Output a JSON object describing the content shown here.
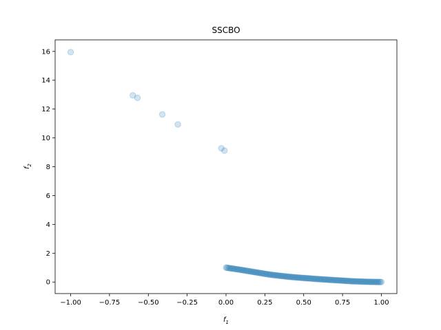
{
  "chart_data": {
    "type": "scatter",
    "title": "SSCBO",
    "xlabel": {
      "base": "f",
      "sub": "1"
    },
    "ylabel": {
      "base": "f",
      "sub": "2"
    },
    "xlim": [
      -1.1,
      1.1
    ],
    "ylim": [
      -0.8,
      16.8
    ],
    "xticks": [
      -1.0,
      -0.75,
      -0.5,
      -0.25,
      0.0,
      0.25,
      0.5,
      0.75,
      1.0
    ],
    "xtick_labels": [
      "−1.00",
      "−0.75",
      "−0.50",
      "−0.25",
      "0.00",
      "0.25",
      "0.50",
      "0.75",
      "1.00"
    ],
    "yticks": [
      0,
      2,
      4,
      6,
      8,
      10,
      12,
      14,
      16
    ],
    "ytick_labels": [
      "0",
      "2",
      "4",
      "6",
      "8",
      "10",
      "12",
      "14",
      "16"
    ],
    "grid": false,
    "marker_color": "#1f77b4",
    "marker_alpha": 0.2,
    "series": [
      {
        "outliers": [
          {
            "x": -1.0,
            "y": 15.95
          },
          {
            "x": -0.6,
            "y": 12.95
          },
          {
            "x": -0.57,
            "y": 12.78
          },
          {
            "x": -0.41,
            "y": 11.63
          },
          {
            "x": -0.31,
            "y": 10.93
          },
          {
            "x": -0.03,
            "y": 9.28
          },
          {
            "x": -0.01,
            "y": 9.12
          }
        ],
        "front": {
          "description": "dense curve of points approximately following f2 = (1 - sqrt(f1))^... from (0,1) to (1,0)",
          "x_start": 0.0,
          "x_end": 1.0,
          "count": 150,
          "y_values_at": [
            {
              "x": 0.0,
              "y": 1.0
            },
            {
              "x": 0.1,
              "y": 0.84
            },
            {
              "x": 0.2,
              "y": 0.66
            },
            {
              "x": 0.25,
              "y": 0.57
            },
            {
              "x": 0.3,
              "y": 0.49
            },
            {
              "x": 0.4,
              "y": 0.37
            },
            {
              "x": 0.5,
              "y": 0.28
            },
            {
              "x": 0.6,
              "y": 0.2
            },
            {
              "x": 0.7,
              "y": 0.13
            },
            {
              "x": 0.75,
              "y": 0.1
            },
            {
              "x": 0.8,
              "y": 0.06
            },
            {
              "x": 0.9,
              "y": 0.02
            },
            {
              "x": 1.0,
              "y": 0.0
            }
          ]
        }
      }
    ]
  }
}
